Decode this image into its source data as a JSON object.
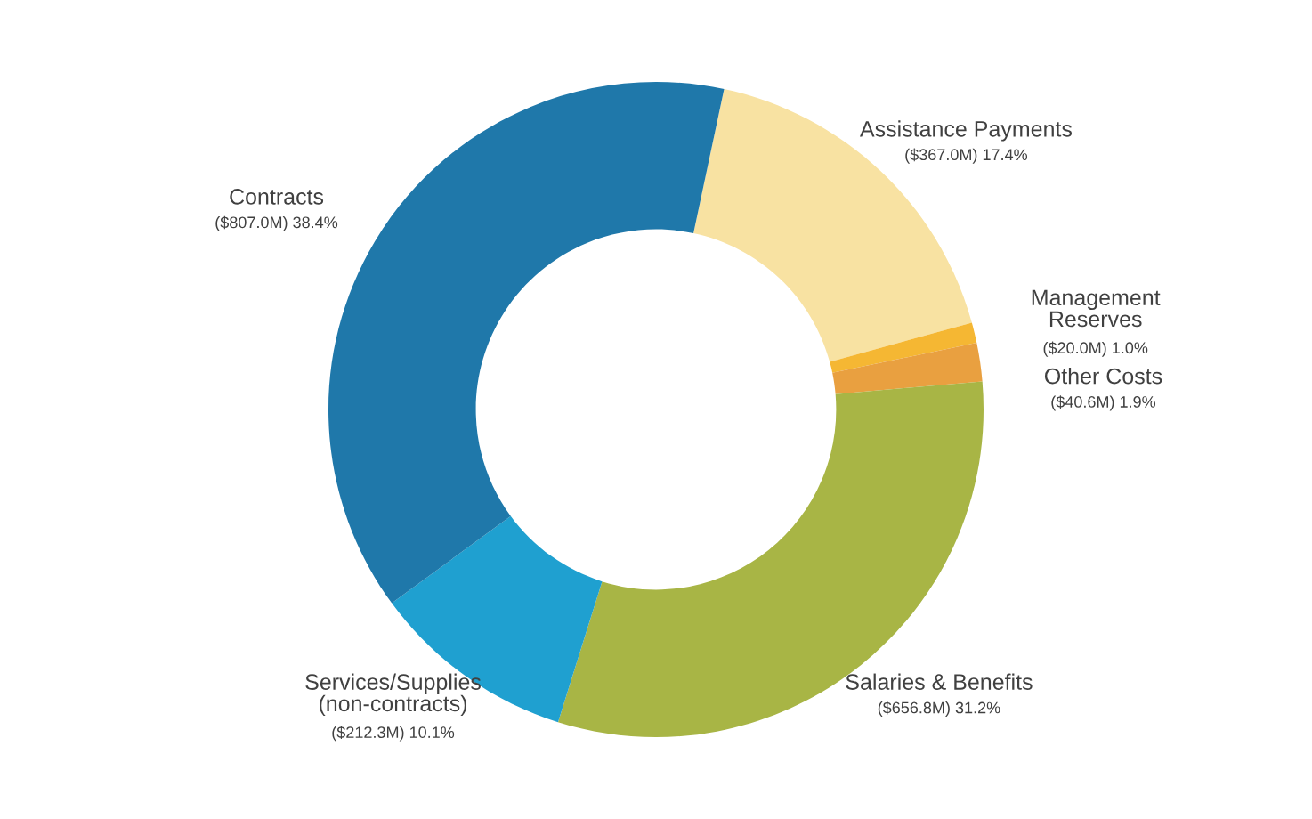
{
  "chart_data": {
    "type": "donut",
    "categories": [
      "Assistance Payments",
      "Management\nReserves",
      "Other Costs",
      "Salaries & Benefits",
      "Services/Supplies\n(non-contracts)",
      "Contracts"
    ],
    "values": [
      17.4,
      1.0,
      1.9,
      31.2,
      10.1,
      38.4
    ],
    "value_labels": [
      "($367.0M) 17.4%",
      "($20.0M) 1.0%",
      "($40.6M) 1.9%",
      "($656.8M) 31.2%",
      "($212.3M) 10.1%",
      "($807.0M) 38.4%"
    ],
    "colors": [
      "#f8e2a2",
      "#f5b733",
      "#e9a040",
      "#a8b545",
      "#1fa0d0",
      "#1f78aa"
    ],
    "legend": false
  }
}
